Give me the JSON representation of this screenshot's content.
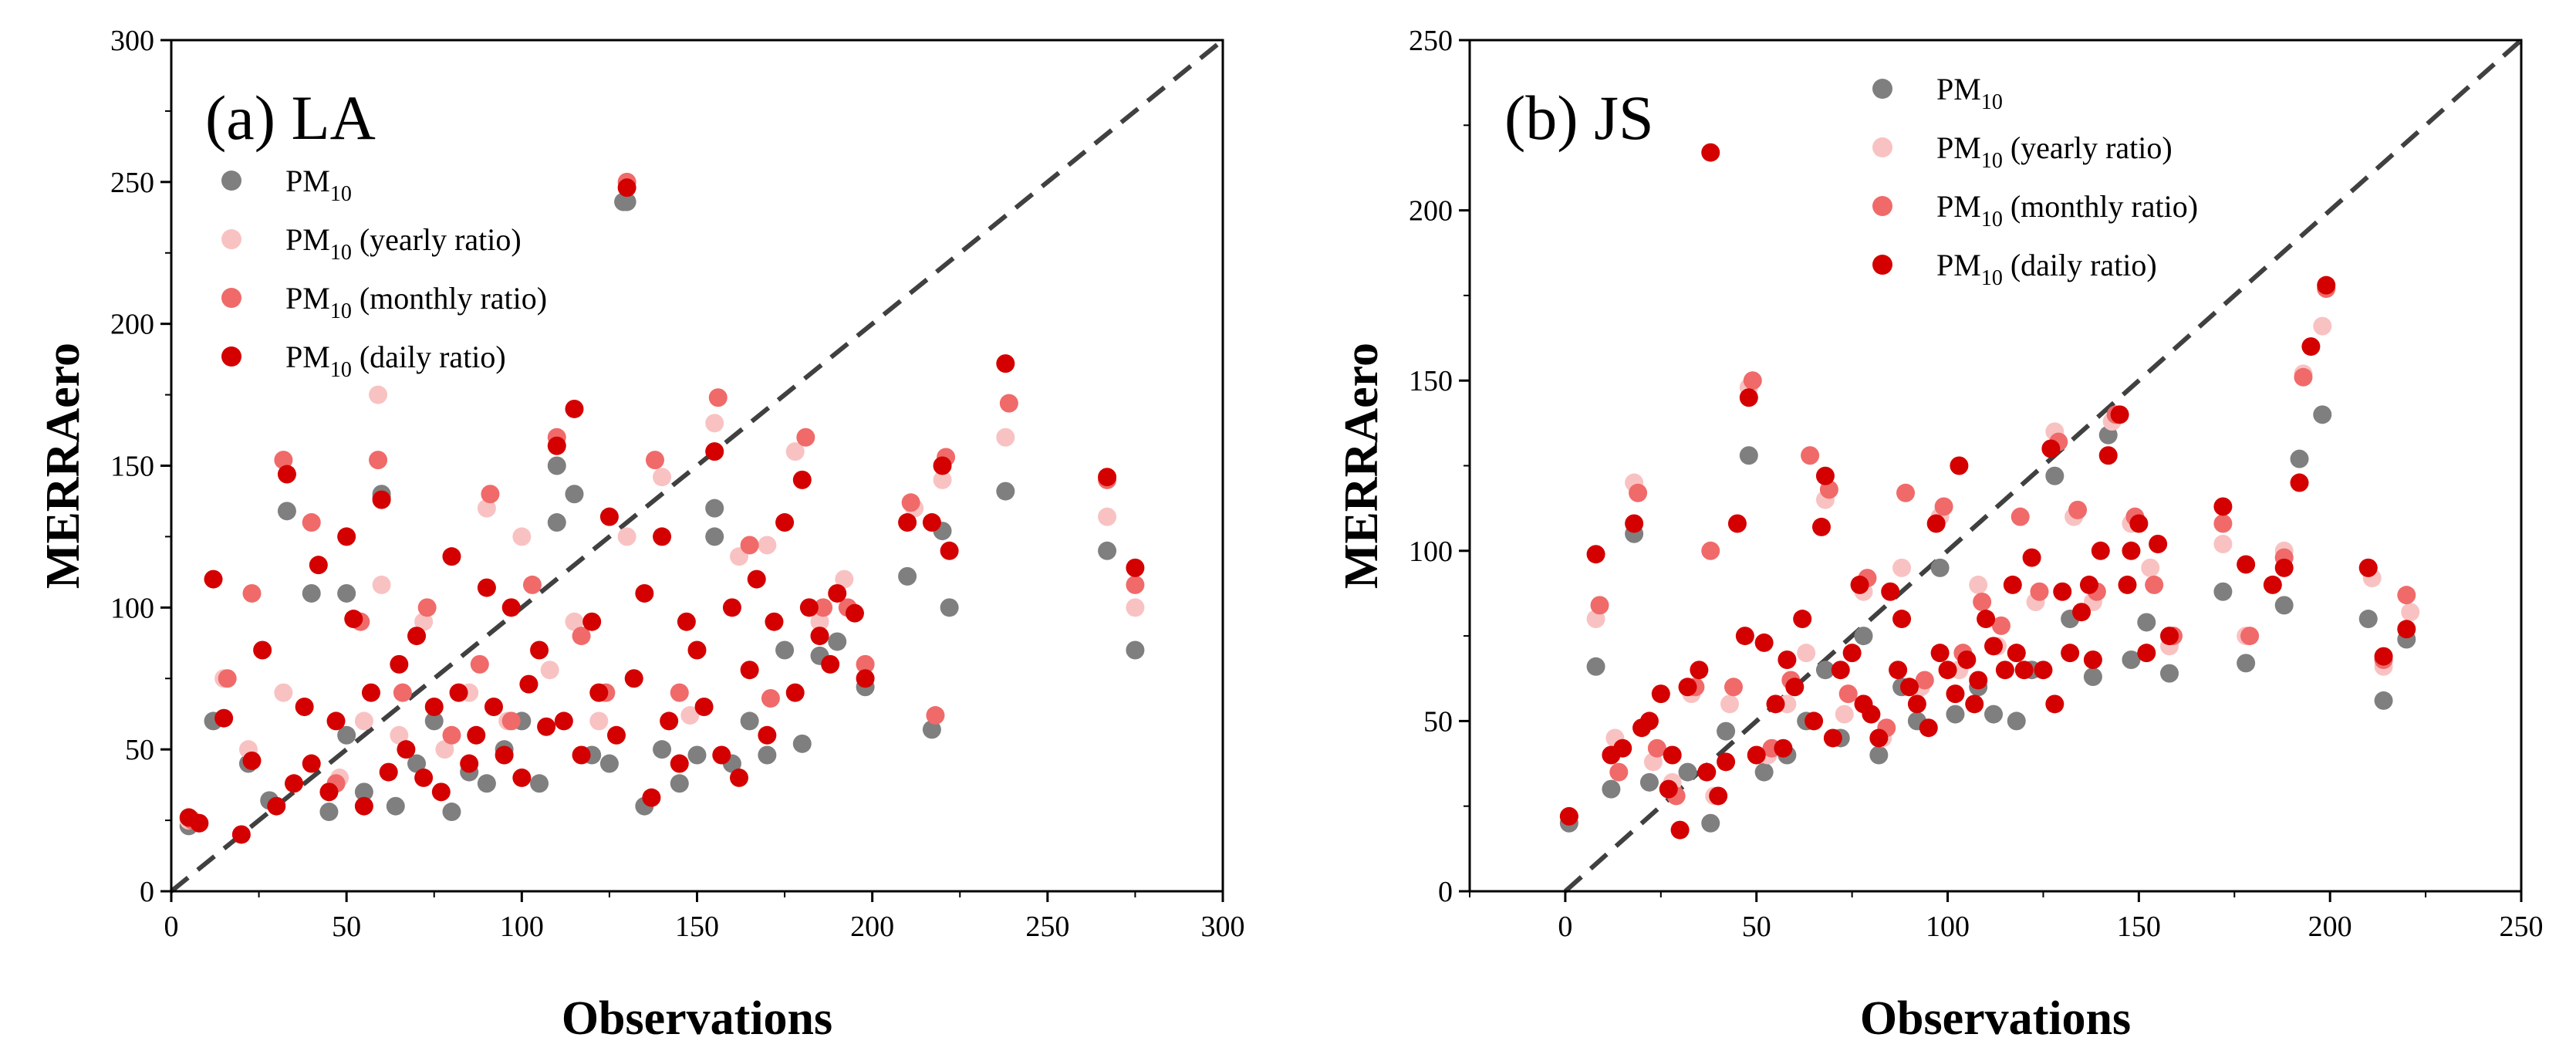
{
  "chart_data": [
    {
      "type": "scatter",
      "panel_label": "(a) LA",
      "xlabel": "Observations",
      "ylabel": "MERRAero",
      "xlim": [
        0,
        300
      ],
      "ylim": [
        0,
        300
      ],
      "x_ticks": [
        "0",
        "50",
        "100",
        "150",
        "200",
        "250",
        "300"
      ],
      "y_ticks": [
        "0",
        "50",
        "100",
        "150",
        "200",
        "250",
        "300"
      ],
      "reference_line": "1:1 dashed",
      "legend_position": "upper-left",
      "series": [
        {
          "name_base": "PM",
          "name_sub": "10",
          "name_suffix": "",
          "color": "#7f7f7f",
          "x": [
            5,
            12,
            22,
            28,
            33,
            40,
            45,
            50,
            55,
            60,
            64,
            70,
            75,
            80,
            85,
            90,
            95,
            100,
            105,
            110,
            115,
            120,
            125,
            130,
            135,
            140,
            145,
            150,
            155,
            160,
            165,
            170,
            175,
            180,
            185,
            190,
            198,
            210,
            217,
            220,
            222,
            238,
            267,
            275,
            129,
            110,
            155,
            60,
            50
          ],
          "y": [
            23,
            60,
            45,
            32,
            134,
            105,
            28,
            105,
            35,
            139,
            30,
            45,
            60,
            28,
            42,
            38,
            50,
            60,
            38,
            130,
            140,
            48,
            45,
            243,
            30,
            50,
            38,
            48,
            135,
            45,
            60,
            48,
            85,
            52,
            83,
            88,
            72,
            111,
            57,
            127,
            100,
            141,
            120,
            85,
            243,
            150,
            125,
            140,
            55
          ]
        },
        {
          "name_base": "PM",
          "name_sub": "10",
          "name_suffix": " (yearly ratio)",
          "color": "#f9c2c2",
          "x": [
            5,
            15,
            22,
            32,
            40,
            48,
            55,
            59,
            65,
            72,
            78,
            85,
            90,
            96,
            100,
            108,
            115,
            122,
            130,
            140,
            148,
            155,
            162,
            170,
            178,
            185,
            192,
            198,
            212,
            220,
            238,
            267,
            275,
            60
          ],
          "y": [
            25,
            75,
            50,
            70,
            130,
            40,
            60,
            175,
            55,
            95,
            50,
            70,
            135,
            60,
            125,
            78,
            95,
            60,
            125,
            146,
            62,
            165,
            118,
            122,
            155,
            95,
            110,
            80,
            135,
            145,
            160,
            132,
            100,
            108
          ]
        },
        {
          "name_base": "PM",
          "name_sub": "10",
          "name_suffix": " (monthly ratio)",
          "color": "#f06a6a",
          "x": [
            6,
            16,
            23,
            32,
            40,
            47,
            54,
            59,
            66,
            73,
            80,
            88,
            91,
            97,
            103,
            110,
            117,
            124,
            130,
            138,
            145,
            156,
            165,
            171,
            181,
            186,
            193,
            198,
            211,
            218,
            221,
            239,
            267,
            275
          ],
          "y": [
            25,
            75,
            105,
            152,
            130,
            38,
            95,
            152,
            70,
            100,
            55,
            80,
            140,
            60,
            108,
            160,
            90,
            70,
            250,
            152,
            70,
            174,
            122,
            68,
            160,
            100,
            100,
            80,
            137,
            62,
            153,
            172,
            145,
            108
          ]
        },
        {
          "name_base": "PM",
          "name_sub": "10",
          "name_suffix": " (daily ratio)",
          "color": "#d40000",
          "x": [
            5,
            8,
            12,
            15,
            20,
            23,
            26,
            30,
            33,
            35,
            38,
            40,
            42,
            45,
            47,
            50,
            52,
            55,
            57,
            60,
            62,
            65,
            67,
            70,
            72,
            75,
            77,
            80,
            82,
            85,
            87,
            90,
            92,
            95,
            97,
            100,
            102,
            105,
            107,
            110,
            112,
            115,
            117,
            120,
            122,
            125,
            127,
            130,
            132,
            135,
            137,
            140,
            142,
            145,
            147,
            150,
            152,
            155,
            157,
            160,
            162,
            165,
            167,
            170,
            172,
            175,
            178,
            180,
            182,
            185,
            188,
            190,
            195,
            198,
            210,
            217,
            220,
            222,
            238,
            267,
            275
          ],
          "y": [
            26,
            24,
            110,
            61,
            20,
            46,
            85,
            30,
            147,
            38,
            65,
            45,
            115,
            35,
            60,
            125,
            96,
            30,
            70,
            138,
            42,
            80,
            50,
            90,
            40,
            65,
            35,
            118,
            70,
            45,
            55,
            107,
            65,
            48,
            100,
            40,
            73,
            85,
            58,
            157,
            60,
            170,
            48,
            95,
            70,
            132,
            55,
            248,
            75,
            105,
            33,
            125,
            60,
            45,
            95,
            85,
            65,
            155,
            48,
            100,
            40,
            78,
            110,
            55,
            95,
            130,
            70,
            145,
            100,
            90,
            80,
            105,
            98,
            75,
            130,
            130,
            150,
            120,
            186,
            146,
            114
          ]
        }
      ]
    },
    {
      "type": "scatter",
      "panel_label": "(b) JS",
      "xlabel": "Observations",
      "ylabel": "MERRAero",
      "xlim": [
        -25,
        250
      ],
      "ylim": [
        0,
        250
      ],
      "x_ticks": [
        "0",
        "50",
        "100",
        "150",
        "200",
        "250"
      ],
      "y_ticks": [
        "0",
        "50",
        "100",
        "150",
        "200",
        "250"
      ],
      "reference_line": "1:1 dashed",
      "legend_position": "top-center",
      "series": [
        {
          "name_base": "PM",
          "name_sub": "10",
          "name_suffix": "",
          "color": "#7f7f7f",
          "x": [
            1,
            8,
            12,
            18,
            22,
            28,
            32,
            38,
            42,
            48,
            52,
            58,
            63,
            68,
            72,
            78,
            82,
            88,
            92,
            98,
            102,
            108,
            112,
            118,
            122,
            128,
            132,
            138,
            142,
            148,
            152,
            158,
            172,
            178,
            188,
            192,
            198,
            210,
            214,
            220
          ],
          "y": [
            20,
            66,
            30,
            105,
            32,
            30,
            35,
            20,
            47,
            128,
            35,
            40,
            50,
            65,
            45,
            75,
            40,
            60,
            50,
            95,
            52,
            60,
            52,
            50,
            65,
            122,
            80,
            63,
            134,
            68,
            79,
            64,
            88,
            67,
            84,
            127,
            140,
            80,
            56,
            74
          ]
        },
        {
          "name_base": "PM",
          "name_sub": "10",
          "name_suffix": " (yearly ratio)",
          "color": "#f9c2c2",
          "x": [
            1,
            8,
            13,
            18,
            23,
            28,
            33,
            39,
            43,
            48,
            53,
            58,
            63,
            68,
            73,
            78,
            83,
            88,
            93,
            98,
            103,
            108,
            113,
            118,
            123,
            128,
            133,
            138,
            143,
            148,
            153,
            158,
            172,
            178,
            188,
            193,
            198,
            211,
            214,
            221
          ],
          "y": [
            22,
            80,
            45,
            120,
            38,
            32,
            58,
            28,
            55,
            148,
            40,
            55,
            70,
            115,
            52,
            88,
            45,
            95,
            60,
            110,
            65,
            90,
            72,
            70,
            85,
            135,
            110,
            85,
            138,
            108,
            95,
            72,
            102,
            75,
            100,
            152,
            166,
            92,
            66,
            82
          ]
        },
        {
          "name_base": "PM",
          "name_sub": "10",
          "name_suffix": " (monthly ratio)",
          "color": "#f06a6a",
          "x": [
            1,
            9,
            14,
            19,
            24,
            29,
            34,
            38,
            44,
            49,
            54,
            59,
            64,
            69,
            74,
            79,
            84,
            89,
            94,
            99,
            104,
            109,
            114,
            119,
            124,
            129,
            134,
            139,
            144,
            149,
            154,
            159,
            172,
            179,
            188,
            193,
            199,
            210,
            214,
            220
          ],
          "y": [
            22,
            84,
            35,
            117,
            42,
            28,
            60,
            100,
            60,
            150,
            42,
            62,
            128,
            118,
            58,
            92,
            48,
            117,
            62,
            113,
            70,
            85,
            78,
            110,
            88,
            132,
            112,
            88,
            140,
            110,
            90,
            75,
            108,
            75,
            98,
            151,
            177,
            95,
            68,
            87
          ]
        },
        {
          "name_base": "PM",
          "name_sub": "10",
          "name_suffix": " (daily ratio)",
          "color": "#d40000",
          "x": [
            1,
            8,
            12,
            15,
            18,
            20,
            22,
            25,
            27,
            28,
            30,
            32,
            35,
            37,
            38,
            40,
            42,
            45,
            47,
            48,
            50,
            52,
            55,
            57,
            58,
            60,
            62,
            65,
            67,
            68,
            70,
            72,
            75,
            77,
            78,
            80,
            82,
            85,
            87,
            88,
            90,
            92,
            95,
            97,
            98,
            100,
            102,
            103,
            105,
            107,
            108,
            110,
            112,
            115,
            117,
            118,
            120,
            122,
            125,
            127,
            128,
            130,
            132,
            135,
            137,
            138,
            140,
            142,
            145,
            147,
            148,
            150,
            152,
            155,
            158,
            172,
            178,
            185,
            188,
            192,
            195,
            199,
            210,
            214,
            220
          ],
          "y": [
            22,
            99,
            40,
            42,
            108,
            48,
            50,
            58,
            30,
            40,
            18,
            60,
            65,
            35,
            217,
            28,
            38,
            108,
            75,
            145,
            40,
            73,
            55,
            42,
            68,
            60,
            80,
            50,
            107,
            122,
            45,
            65,
            70,
            90,
            55,
            52,
            45,
            88,
            65,
            80,
            60,
            55,
            48,
            108,
            70,
            65,
            58,
            125,
            68,
            55,
            62,
            80,
            72,
            65,
            90,
            70,
            65,
            98,
            65,
            130,
            55,
            88,
            70,
            82,
            90,
            68,
            100,
            128,
            140,
            90,
            100,
            108,
            70,
            102,
            75,
            113,
            96,
            90,
            95,
            120,
            160,
            178,
            95,
            69,
            77
          ]
        }
      ]
    }
  ]
}
